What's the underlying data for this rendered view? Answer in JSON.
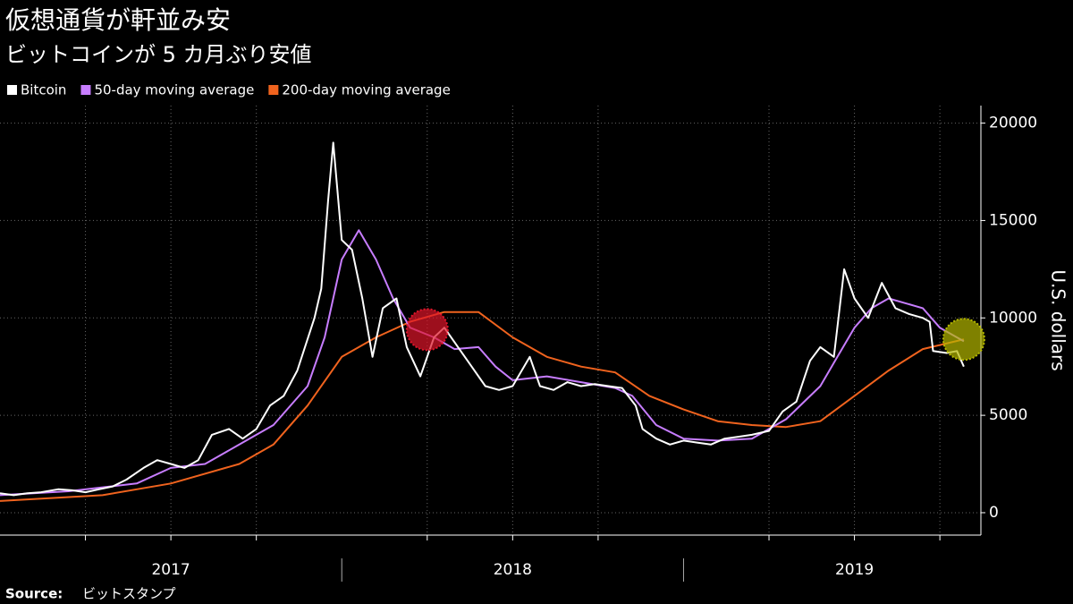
{
  "chart_data": {
    "type": "line",
    "title": "仮想通貨が軒並み安",
    "subtitle": "ビットコインが 5 カ月ぶり安値",
    "y_label": "U.S. dollars",
    "source_label": "Source:",
    "source": "ビットスタンプ",
    "xlim": [
      2017,
      2019.87
    ],
    "ylim": [
      -1150,
      20900
    ],
    "yticks": [
      0,
      5000,
      10000,
      15000,
      20000
    ],
    "xticks": [
      {
        "value": 2017.5,
        "label": "2017"
      },
      {
        "value": 2018.5,
        "label": "2018"
      },
      {
        "value": 2019.5,
        "label": "2019"
      }
    ],
    "xgrid": [
      2017.25,
      2017.5,
      2017.75,
      2018.25,
      2018.5,
      2018.75,
      2019.25,
      2019.5,
      2019.75
    ],
    "year_breaks": [
      2018,
      2019
    ],
    "grid": true,
    "series": [
      {
        "name": "Bitcoin",
        "color": "#ffffff",
        "x": [
          2017.0,
          2017.04,
          2017.08,
          2017.12,
          2017.17,
          2017.21,
          2017.25,
          2017.29,
          2017.33,
          2017.37,
          2017.42,
          2017.46,
          2017.5,
          2017.54,
          2017.58,
          2017.62,
          2017.67,
          2017.71,
          2017.75,
          2017.79,
          2017.83,
          2017.87,
          2017.92,
          2017.94,
          2017.96,
          2017.975,
          2018.0,
          2018.03,
          2018.06,
          2018.09,
          2018.12,
          2018.16,
          2018.19,
          2018.23,
          2018.27,
          2018.3,
          2018.34,
          2018.38,
          2018.42,
          2018.46,
          2018.5,
          2018.55,
          2018.58,
          2018.62,
          2018.66,
          2018.7,
          2018.74,
          2018.78,
          2018.82,
          2018.86,
          2018.88,
          2018.92,
          2018.96,
          2019.0,
          2019.04,
          2019.08,
          2019.12,
          2019.16,
          2019.2,
          2019.25,
          2019.29,
          2019.33,
          2019.37,
          2019.4,
          2019.44,
          2019.47,
          2019.5,
          2019.54,
          2019.58,
          2019.62,
          2019.66,
          2019.7,
          2019.72,
          2019.73,
          2019.77,
          2019.8,
          2019.82
        ],
        "values": [
          1000,
          900,
          1000,
          1050,
          1200,
          1150,
          1050,
          1200,
          1350,
          1700,
          2300,
          2700,
          2500,
          2300,
          2700,
          4000,
          4300,
          3800,
          4300,
          5500,
          6000,
          7300,
          10000,
          11500,
          16000,
          19000,
          14000,
          13500,
          11000,
          8000,
          10500,
          11000,
          8500,
          7000,
          9000,
          9500,
          8500,
          7500,
          6500,
          6300,
          6500,
          8000,
          6500,
          6300,
          6700,
          6500,
          6600,
          6500,
          6400,
          5500,
          4300,
          3800,
          3500,
          3700,
          3600,
          3500,
          3800,
          3900,
          4000,
          4200,
          5200,
          5700,
          7800,
          8500,
          8000,
          12500,
          11000,
          10000,
          11800,
          10500,
          10200,
          10000,
          9800,
          8300,
          8200,
          8300,
          7500
        ]
      },
      {
        "name": "50-day moving average",
        "color": "#c77dff",
        "x": [
          2017.0,
          2017.2,
          2017.4,
          2017.5,
          2017.6,
          2017.7,
          2017.8,
          2017.9,
          2017.95,
          2018.0,
          2018.05,
          2018.1,
          2018.15,
          2018.2,
          2018.27,
          2018.33,
          2018.4,
          2018.45,
          2018.5,
          2018.6,
          2018.7,
          2018.8,
          2018.85,
          2018.92,
          2019.0,
          2019.1,
          2019.2,
          2019.3,
          2019.4,
          2019.45,
          2019.5,
          2019.55,
          2019.6,
          2019.7,
          2019.75,
          2019.82
        ],
        "values": [
          900,
          1100,
          1500,
          2300,
          2500,
          3500,
          4500,
          6500,
          9000,
          13000,
          14500,
          13000,
          11000,
          9500,
          9000,
          8400,
          8500,
          7500,
          6800,
          7000,
          6700,
          6400,
          6000,
          4500,
          3800,
          3700,
          3800,
          4800,
          6500,
          8000,
          9500,
          10500,
          11000,
          10500,
          9500,
          8800
        ]
      },
      {
        "name": "200-day moving average",
        "color": "#f0631e",
        "x": [
          2017.0,
          2017.3,
          2017.5,
          2017.7,
          2017.8,
          2017.9,
          2018.0,
          2018.1,
          2018.2,
          2018.3,
          2018.4,
          2018.5,
          2018.6,
          2018.7,
          2018.8,
          2018.9,
          2019.0,
          2019.1,
          2019.2,
          2019.3,
          2019.4,
          2019.5,
          2019.6,
          2019.7,
          2019.82
        ],
        "values": [
          600,
          900,
          1500,
          2500,
          3500,
          5500,
          8000,
          9000,
          9800,
          10300,
          10300,
          9000,
          8000,
          7500,
          7200,
          6000,
          5300,
          4700,
          4500,
          4400,
          4700,
          6000,
          7300,
          8400,
          8900
        ]
      }
    ],
    "highlights": [
      {
        "x": 2018.25,
        "y": 9400,
        "color": "#e0152a"
      },
      {
        "x": 2019.82,
        "y": 8900,
        "color": "#b5b800"
      }
    ]
  }
}
